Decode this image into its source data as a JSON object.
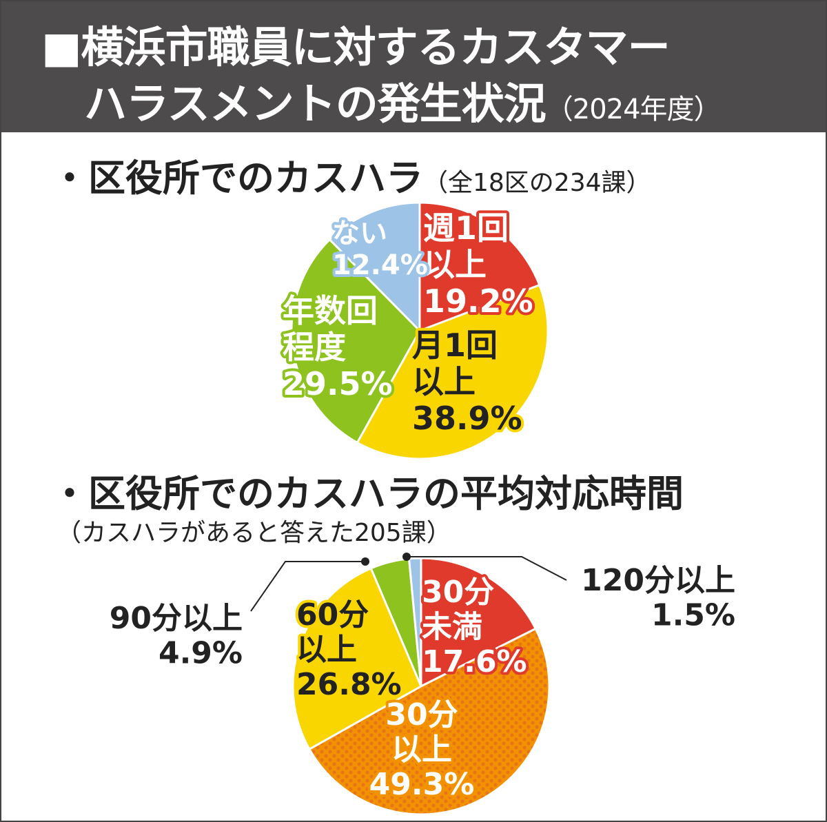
{
  "title_line1": "■横浜市職員に対するカスタマー",
  "title_line2": "ハラスメントの発生状況",
  "title_year": "（2024年度）",
  "chart_data": [
    {
      "type": "pie",
      "title": "・区役所でのカスハラ",
      "subtitle": "（全18区の234課）",
      "categories": [
        "週1回以上",
        "月1回以上",
        "年数回程度",
        "ない"
      ],
      "values": [
        19.2,
        38.9,
        29.5,
        12.4
      ],
      "labels": [
        "19.2%",
        "38.9%",
        "29.5%",
        "12.4%"
      ],
      "colors": [
        "#e03a2c",
        "#f9d600",
        "#8dc21f",
        "#9dc3e6"
      ]
    },
    {
      "type": "pie",
      "title": "・区役所でのカスハラの平均対応時間",
      "subtitle": "（カスハラがあると答えた205課）",
      "categories": [
        "30分未満",
        "30分以上",
        "60分以上",
        "90分以上",
        "120分以上"
      ],
      "values": [
        17.6,
        49.3,
        26.8,
        4.9,
        1.5
      ],
      "labels": [
        "17.6%",
        "49.3%",
        "26.8%",
        "4.9%",
        "1.5%"
      ],
      "colors": [
        "#e03a2c",
        "#f39200",
        "#f9d600",
        "#8dc21f",
        "#9dc3e6"
      ]
    }
  ]
}
